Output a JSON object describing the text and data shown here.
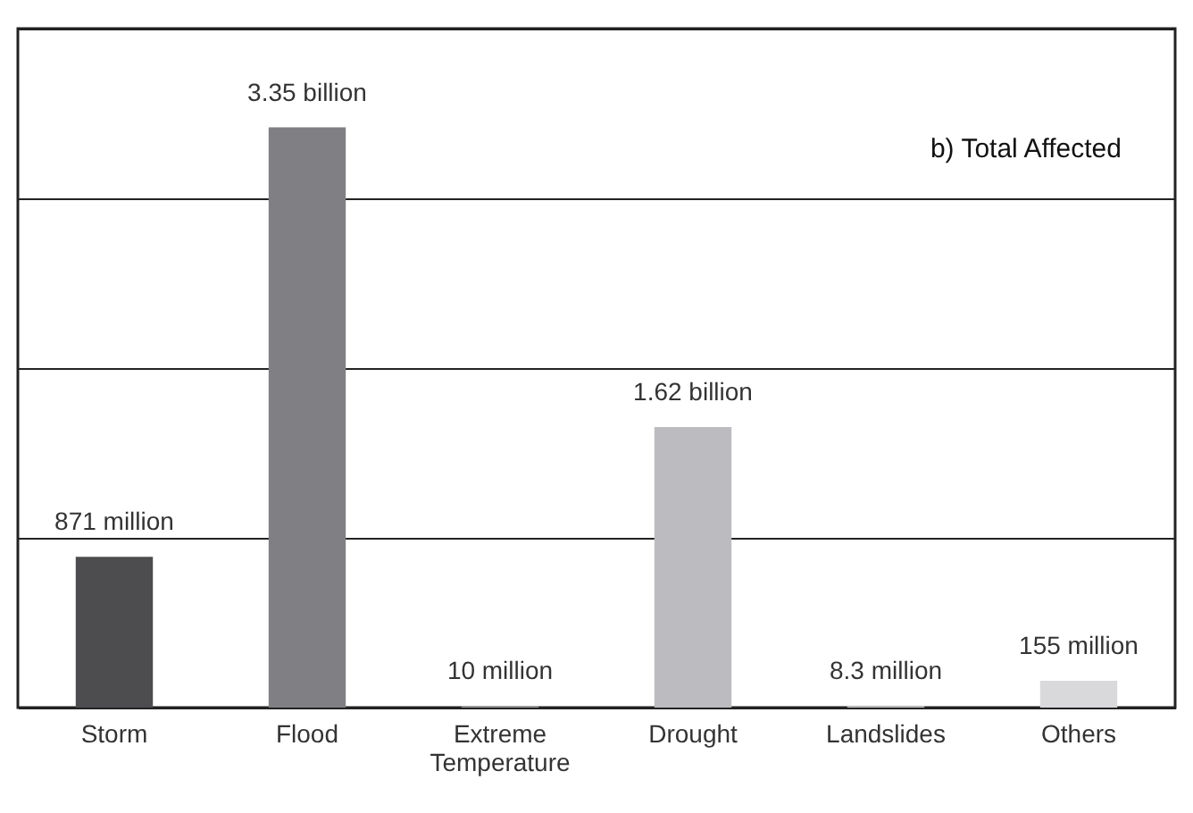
{
  "chart_data": {
    "type": "bar",
    "title": "b) Total Affected",
    "categories": [
      "Storm",
      "Flood",
      "Extreme Temperature",
      "Drought",
      "Landslides",
      "Others"
    ],
    "values": [
      871000000,
      3350000000,
      10000000,
      1620000000,
      8300000,
      155000000
    ],
    "colors": [
      "#4d4d4f",
      "#808084",
      "#9a9a9e",
      "#bcbcc0",
      "#cacacc",
      "#d9d9db"
    ],
    "value_labels": [
      "871 million",
      "3.35 billion",
      "10 million",
      "1.62 billion",
      "8.3 million",
      "155 million"
    ],
    "ylim": [
      0,
      3920000000
    ],
    "yticks": [
      {
        "value": 0,
        "label": null
      },
      {
        "value": 980000000,
        "label": null
      },
      {
        "value": 1960000000,
        "label": null
      },
      {
        "value": 2940000000,
        "label": null
      },
      {
        "value": 3920000000,
        "label": null
      }
    ],
    "grid": "y",
    "tick_labels": "x",
    "legend": false
  }
}
